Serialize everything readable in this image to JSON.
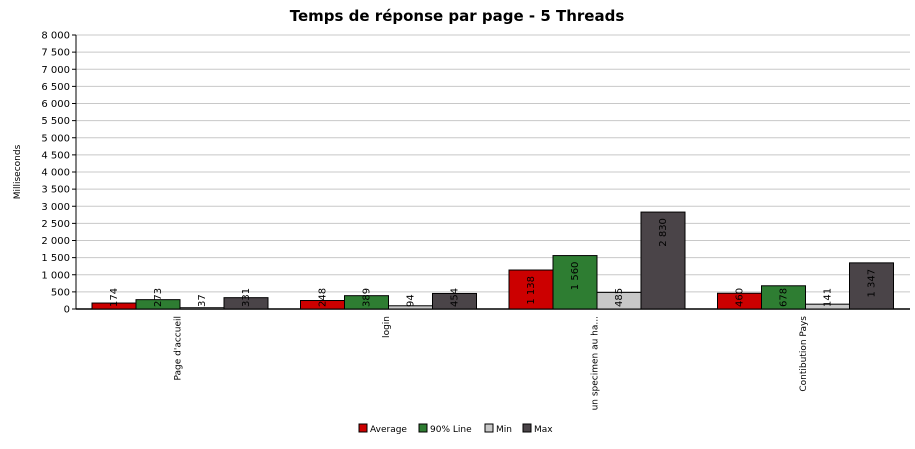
{
  "chart_data": {
    "type": "bar",
    "title": "Temps de réponse par page - 5 Threads",
    "ylabel": "Milliseconds",
    "xlabel": "",
    "ylim": [
      0,
      8000
    ],
    "yticks": [
      "0",
      "500",
      "1 000",
      "1 500",
      "2 000",
      "2 500",
      "3 000",
      "3 500",
      "4 000",
      "4 500",
      "5 000",
      "5 500",
      "6 000",
      "6 500",
      "7 000",
      "7 500",
      "8 000"
    ],
    "categories": [
      "Page d'accueil",
      "login",
      "un specimen au ha...",
      "Contibution Pays"
    ],
    "series": [
      {
        "name": "Average",
        "color": "#cc0000",
        "values": [
          174,
          248,
          1138,
          460
        ],
        "labels": [
          "174",
          "248",
          "1 138",
          "460"
        ]
      },
      {
        "name": "90% Line",
        "color": "#2e7d32",
        "values": [
          273,
          389,
          1560,
          678
        ],
        "labels": [
          "273",
          "389",
          "1 560",
          "678"
        ]
      },
      {
        "name": "Min",
        "color": "#c8c8c8",
        "values": [
          37,
          94,
          485,
          141
        ],
        "labels": [
          "37",
          "94",
          "485",
          "141"
        ]
      },
      {
        "name": "Max",
        "color": "#4a4448",
        "values": [
          331,
          454,
          2830,
          1347
        ],
        "labels": [
          "331",
          "454",
          "2 830",
          "1 347"
        ]
      }
    ],
    "grid": true,
    "legend_position": "bottom"
  }
}
